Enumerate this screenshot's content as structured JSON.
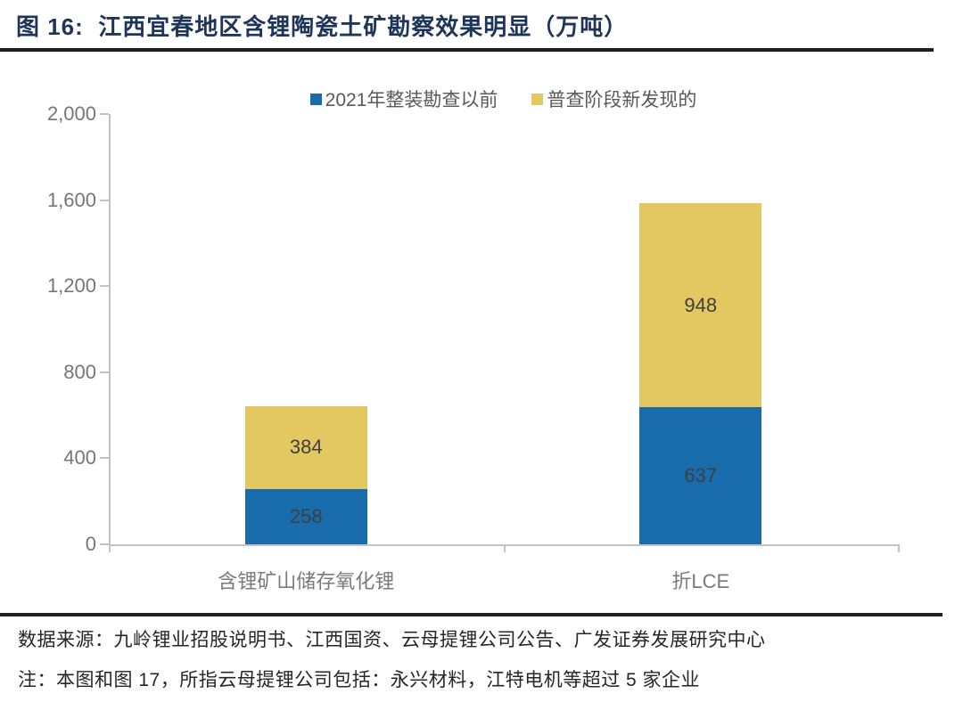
{
  "figure": {
    "title": "图 16:  江西宜春地区含锂陶瓷土矿勘察效果明显（万吨）",
    "footer": {
      "source": "数据来源：九岭锂业招股说明书、江西国资、云母提锂公司公告、广发证券发展研究中心",
      "note": "注：本图和图 17，所指云母提锂公司包括：永兴材料，江特电机等超过 5 家企业"
    }
  },
  "chart_data": {
    "type": "bar",
    "stacked": true,
    "title": "江西宜春地区含锂陶瓷土矿勘察效果明显",
    "unit": "万吨",
    "categories": [
      "含锂矿山储存氧化锂",
      "折LCE"
    ],
    "series": [
      {
        "name": "2021年整装勘查以前",
        "color": "#186CAB",
        "values": [
          258,
          637
        ]
      },
      {
        "name": "普查阶段新发现的",
        "color": "#E3C861",
        "values": [
          384,
          948
        ]
      }
    ],
    "totals": [
      642,
      1585
    ],
    "ylim": [
      0,
      2000
    ],
    "yticks": [
      "0",
      "400",
      "800",
      "1,200",
      "1,600",
      "2,000"
    ],
    "xlabel": "",
    "ylabel": "",
    "legend_position": "top-center",
    "grid": false,
    "value_labels": true,
    "colors": {
      "value_label": "#3F3F3F",
      "axis_label": "#767676",
      "category_label": "#7A7A7A",
      "legend_text": "#595959",
      "axis_line": "#C3C3C3"
    }
  }
}
